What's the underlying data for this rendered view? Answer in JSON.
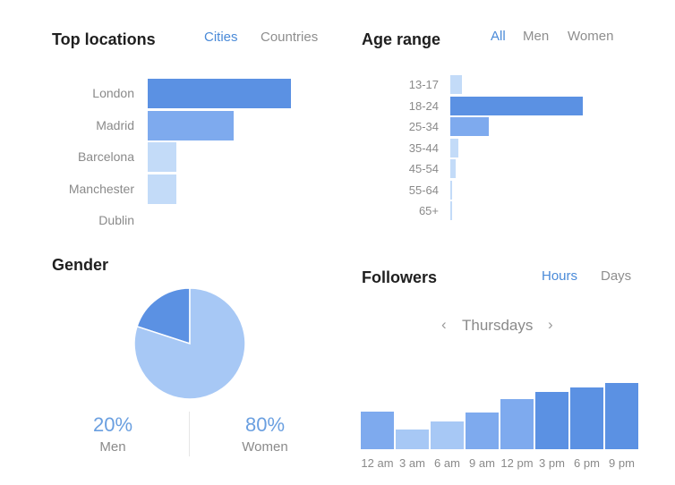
{
  "top_locations": {
    "title": "Top locations",
    "tabs": [
      {
        "label": "Cities",
        "active": true
      },
      {
        "label": "Countries",
        "active": false
      }
    ]
  },
  "age_range": {
    "title": "Age range",
    "tabs": [
      {
        "label": "All",
        "active": true
      },
      {
        "label": "Men",
        "active": false
      },
      {
        "label": "Women",
        "active": false
      }
    ]
  },
  "gender": {
    "title": "Gender"
  },
  "followers": {
    "title": "Followers",
    "tabs": [
      {
        "label": "Hours",
        "active": true
      },
      {
        "label": "Days",
        "active": false
      }
    ],
    "day_selector": {
      "prev": "‹",
      "label": "Thursdays",
      "next": "›"
    }
  },
  "colors": {
    "dark": "#5b91e3",
    "mid": "#7eaaee",
    "light": "#a7c8f5",
    "pale": "#c3dbf8",
    "accent": "#4a8ad8"
  },
  "chart_data": [
    {
      "type": "bar",
      "orientation": "horizontal",
      "categories": [
        "London",
        "Madrid",
        "Barcelona",
        "Manchester",
        "Dublin"
      ],
      "values": [
        100,
        60,
        20,
        20,
        0
      ],
      "xlim": [
        0,
        100
      ]
    },
    {
      "type": "bar",
      "orientation": "horizontal",
      "categories": [
        "13-17",
        "18-24",
        "25-34",
        "35-44",
        "45-54",
        "55-64",
        "65+"
      ],
      "values": [
        9,
        100,
        29,
        6,
        4,
        1,
        1
      ],
      "xlim": [
        0,
        100
      ]
    },
    {
      "type": "pie",
      "slices": [
        {
          "label": "Men",
          "value": 20,
          "display": "20%"
        },
        {
          "label": "Women",
          "value": 80,
          "display": "80%"
        }
      ]
    },
    {
      "type": "bar",
      "categories": [
        "12 am",
        "3 am",
        "6 am",
        "9 am",
        "12 pm",
        "3 pm",
        "6 pm",
        "9 pm"
      ],
      "values": [
        57,
        30,
        42,
        56,
        76,
        87,
        93,
        100
      ],
      "ylim": [
        0,
        100
      ]
    }
  ]
}
